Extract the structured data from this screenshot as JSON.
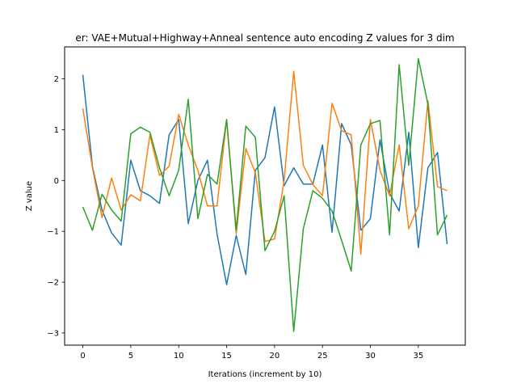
{
  "chart_data": {
    "type": "line",
    "title": "er: VAE+Mutual+Highway+Anneal sentence auto encoding Z values for 3 dim",
    "xlabel": "Iterations (increment by 10)",
    "ylabel": "Z value",
    "xlim": [
      -1.9,
      39.9
    ],
    "ylim": [
      -3.24,
      2.63
    ],
    "xticks": [
      0,
      5,
      10,
      15,
      20,
      25,
      30,
      35
    ],
    "yticks": [
      -3,
      -2,
      -1,
      0,
      1,
      2
    ],
    "x": [
      0,
      1,
      2,
      3,
      4,
      5,
      6,
      7,
      8,
      9,
      10,
      11,
      12,
      13,
      14,
      15,
      16,
      17,
      18,
      19,
      20,
      21,
      22,
      23,
      24,
      25,
      26,
      27,
      28,
      29,
      30,
      31,
      32,
      33,
      34,
      35,
      36,
      37,
      38
    ],
    "series": [
      {
        "color": "#1f77b4",
        "values": [
          2.08,
          0.28,
          -0.58,
          -1.03,
          -1.27,
          0.4,
          -0.2,
          -0.3,
          -0.45,
          0.9,
          1.2,
          -0.85,
          0.0,
          0.4,
          -1.05,
          -2.05,
          -1.08,
          -1.85,
          0.2,
          0.45,
          1.45,
          -0.1,
          0.25,
          -0.07,
          -0.07,
          0.7,
          -1.02,
          1.12,
          0.7,
          -0.98,
          -0.75,
          0.8,
          -0.25,
          -0.6,
          0.95,
          -1.32,
          0.25,
          0.55,
          -1.25
        ]
      },
      {
        "color": "#ff7f0e",
        "values": [
          1.42,
          0.25,
          -0.73,
          0.05,
          -0.58,
          -0.28,
          -0.4,
          0.9,
          0.1,
          0.28,
          1.3,
          0.7,
          0.2,
          -0.5,
          -0.5,
          1.2,
          -1.05,
          0.63,
          0.15,
          -1.2,
          -1.15,
          0.0,
          2.15,
          0.3,
          -0.08,
          -0.3,
          1.52,
          0.98,
          0.9,
          -1.45,
          1.2,
          0.2,
          -0.3,
          0.7,
          -0.95,
          -0.5,
          1.57,
          -0.12,
          -0.2
        ]
      },
      {
        "color": "#2ca02c",
        "values": [
          -0.52,
          -0.98,
          -0.27,
          -0.58,
          -0.8,
          0.92,
          1.05,
          0.95,
          0.25,
          -0.3,
          0.2,
          1.6,
          -0.75,
          0.12,
          -0.07,
          1.2,
          -0.98,
          1.07,
          0.85,
          -1.38,
          -1.0,
          -0.3,
          -2.97,
          -0.95,
          -0.2,
          -0.35,
          -0.6,
          -1.18,
          -1.78,
          0.7,
          1.12,
          1.18,
          -1.07,
          2.28,
          0.3,
          2.4,
          1.5,
          -1.07,
          -0.68
        ]
      }
    ],
    "grid": false,
    "legend": "none"
  }
}
